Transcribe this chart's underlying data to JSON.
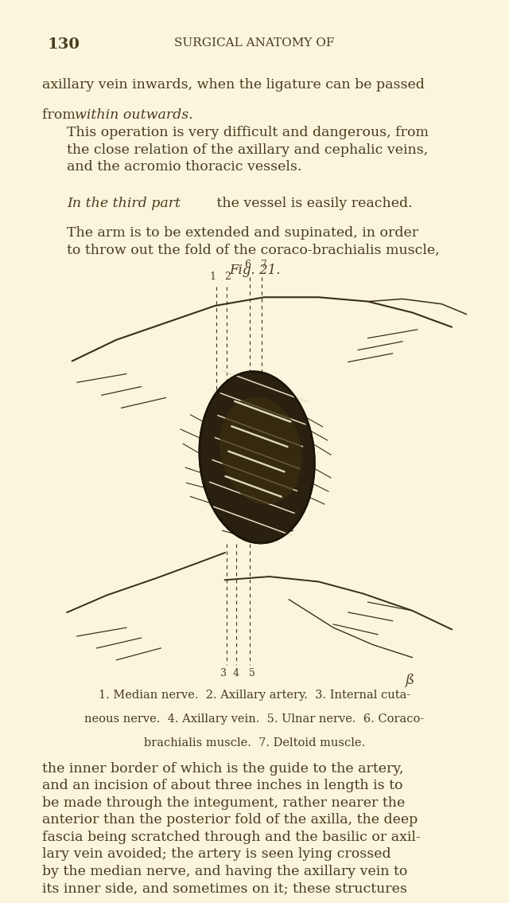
{
  "bg_color": "#FAF5DC",
  "text_color": "#4A3C1E",
  "page_number": "130",
  "header": "SURGICAL ANATOMY OF",
  "para1_line1": "axillary vein inwards, when the ligature can be passed",
  "para1_line2_normal": "from ",
  "para1_line2_italic": "within outwards.",
  "para2": "This operation is very difficult and dangerous, from\nthe close relation of the axillary and cephalic veins,\nand the acromio thoracic vessels.",
  "para3_italic": "In the third part",
  "para3_rest": " the vessel is easily reached.",
  "para4": "The arm is to be extended and supinated, in order\nto throw out the fold of the coraco-brachialis muscle,",
  "fig_label": "Fig. 21.",
  "caption_line1": "1. Median nerve.  2. Axillary artery.  3. Internal cuta-",
  "caption_line2": "neous nerve.  4. Axillary vein.  5. Ulnar nerve.  6. Coraco-",
  "caption_line3": "brachialis muscle.  7. Deltoid muscle.",
  "para5": "the inner border of which is the guide to the artery,\nand an incision of about three inches in length is to\nbe made through the integument, rather nearer the\nanterior than the posterior fold of the axilla, the deep\nfascia being scratched through and the basilic or axil-\nlary vein avoided; the artery is seen lying crossed\nby the median nerve, and having the axillary vein to\nits inner side, and sometimes on it; these structures",
  "line_color": "#3a2e1a",
  "muscle_dark": "#2a2010",
  "muscle_edge": "#1a1408",
  "muscle_highlight1": "#e8dfc0",
  "muscle_highlight2": "#f5eecc",
  "muscle_mid": "#3a2e10"
}
